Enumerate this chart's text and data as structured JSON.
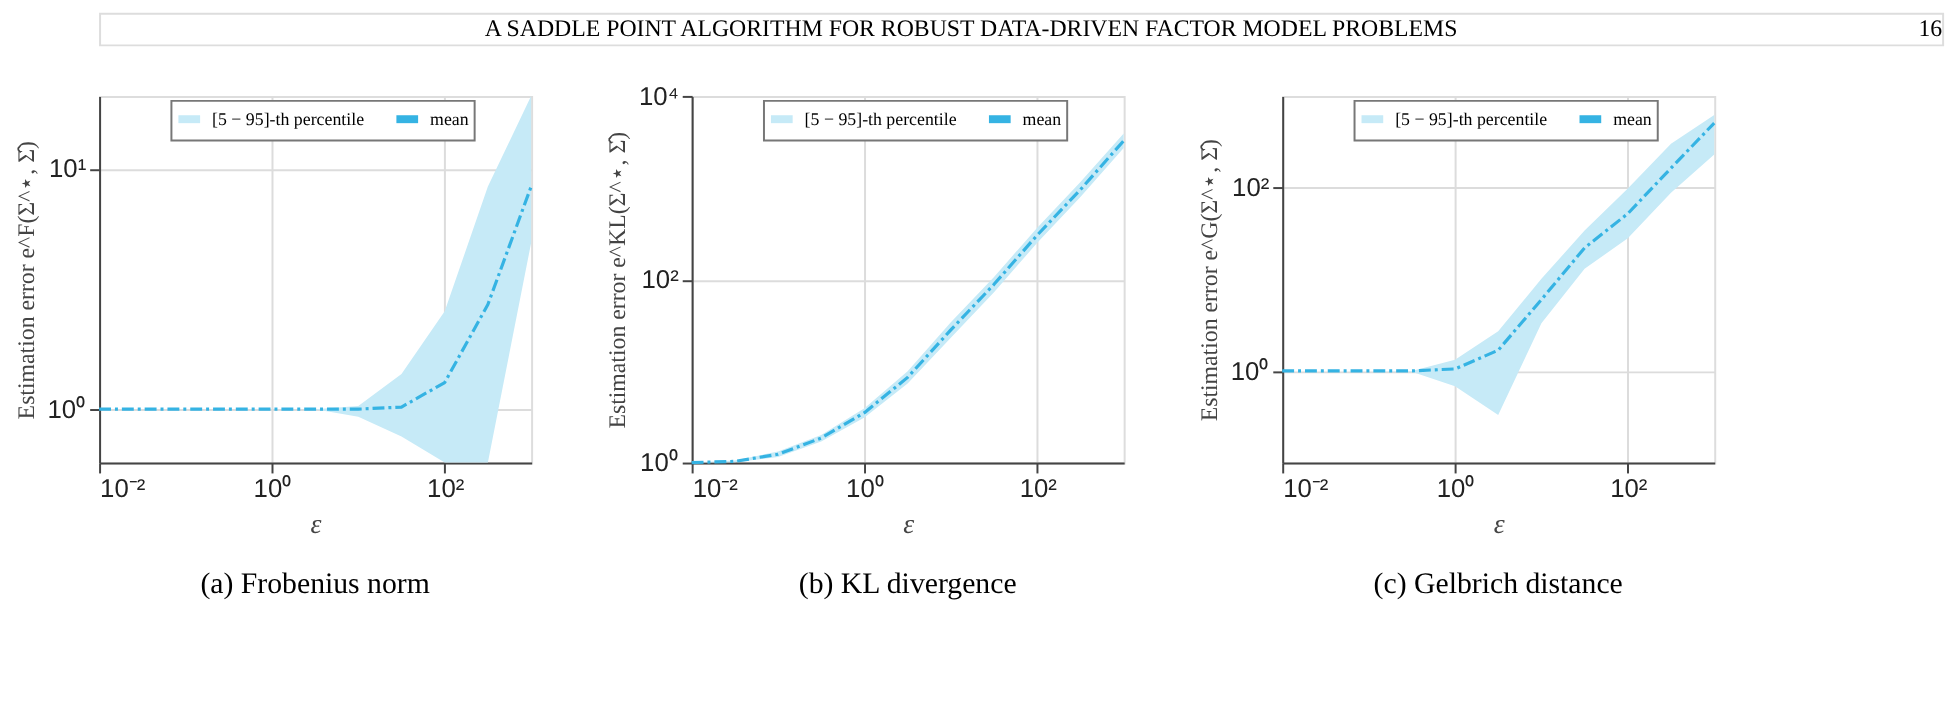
{
  "chart_data": [
    {
      "type": "line",
      "title": "(a) Frobenius norm",
      "xlabel": "ε",
      "ylabel": "Estimation error e^F(Σ^⋆, Σ̂)",
      "log": "xy",
      "grid": true,
      "legend": "top right",
      "annotations": [
        "[5 − 95]-th percentile",
        "A SADDLE POINT ALGORITHM FOR ROBUST DATA-DRIVEN FACTOR MODEL PROBLEMS",
        "16"
      ],
      "x": [
        0.01,
        0.0316,
        0.1,
        0.316,
        1,
        3.16,
        10,
        31.6,
        100,
        316,
        1000
      ],
      "xlim": [
        0.01,
        1000
      ],
      "xticks": [
        {
          "value": 0.01,
          "label": "10⁻²"
        },
        {
          "value": 1,
          "label": "10⁰"
        },
        {
          "value": 100,
          "label": "10²"
        }
      ],
      "ylim": [
        0.6,
        20
      ],
      "yticks": [
        {
          "value": 1,
          "label": "10⁰"
        },
        {
          "value": 10,
          "label": "10¹"
        }
      ],
      "series": [
        {
          "name": "mean",
          "line_style": "dashed",
          "color": "#35b3e3",
          "values": [
            1,
            1,
            1,
            1,
            1,
            1,
            1,
            1.02,
            1.29,
            2.72,
            8.4
          ],
          "lower": [
            1,
            1,
            1,
            1,
            1,
            1,
            0.93,
            0.77,
            0.6,
            0.6,
            4.9
          ],
          "upper": [
            1,
            1,
            1,
            1,
            1,
            1,
            1.03,
            1.4,
            2.55,
            8.4,
            20
          ]
        }
      ]
    },
    {
      "type": "line",
      "title": "(b) KL divergence",
      "xlabel": "ε",
      "ylabel": "Estimation error e^KL(Σ^⋆, Σ̂)",
      "log": "xy",
      "grid": true,
      "legend": "top right",
      "annotations": [
        "[5 − 95]-th percentile"
      ],
      "x": [
        0.01,
        0.0316,
        0.1,
        0.316,
        1,
        3.16,
        10,
        31.6,
        100,
        316,
        1000
      ],
      "xlim": [
        0.01,
        1000
      ],
      "xticks": [
        {
          "value": 0.01,
          "label": "10⁻²"
        },
        {
          "value": 1,
          "label": "10⁰"
        },
        {
          "value": 100,
          "label": "10²"
        }
      ],
      "ylim": [
        1,
        10000
      ],
      "yticks": [
        {
          "value": 1,
          "label": "10⁰"
        },
        {
          "value": 100,
          "label": "10²"
        },
        {
          "value": 10000,
          "label": "10⁴"
        }
      ],
      "series": [
        {
          "name": "mean",
          "line_style": "dashed",
          "color": "#35b3e3",
          "values": [
            1,
            1.03,
            1.23,
            1.85,
            3.5,
            8.5,
            28,
            88,
            303,
            950,
            3240
          ],
          "lower": [
            1,
            1.01,
            1.15,
            1.7,
            3.1,
            7.3,
            23,
            72,
            250,
            790,
            2700
          ],
          "upper": [
            1,
            1.05,
            1.32,
            2.0,
            3.9,
            9.9,
            34,
            106,
            365,
            1150,
            3900
          ]
        }
      ]
    },
    {
      "type": "line",
      "title": "(c) Gelbrich distance",
      "xlabel": "ε",
      "ylabel": "Estimation error e^G(Σ^⋆, Σ̂)",
      "log": "xy",
      "grid": true,
      "legend": "top right",
      "annotations": [
        "[5 − 95]-th percentile"
      ],
      "x": [
        0.01,
        0.0316,
        0.1,
        0.316,
        1,
        3.16,
        10,
        31.6,
        100,
        316,
        1000
      ],
      "xlim": [
        0.01,
        1000
      ],
      "xticks": [
        {
          "value": 0.01,
          "label": "10⁻²"
        },
        {
          "value": 1,
          "label": "10⁰"
        },
        {
          "value": 100,
          "label": "10²"
        }
      ],
      "ylim": [
        0.1,
        1000
      ],
      "yticks": [
        {
          "value": 1,
          "label": "10⁰"
        },
        {
          "value": 100,
          "label": "10²"
        }
      ],
      "series": [
        {
          "name": "mean",
          "line_style": "dashed",
          "color": "#35b3e3",
          "values": [
            1,
            1,
            1,
            1,
            1.05,
            1.68,
            6.0,
            22,
            52,
            163,
            506
          ],
          "lower": [
            1,
            1,
            1,
            0.98,
            0.68,
            0.33,
            3.3,
            13,
            28,
            88,
            230
          ],
          "upper": [
            1,
            1,
            1,
            1.0,
            1.32,
            2.7,
            10.1,
            34,
            98,
            300,
            620
          ]
        }
      ]
    }
  ]
}
